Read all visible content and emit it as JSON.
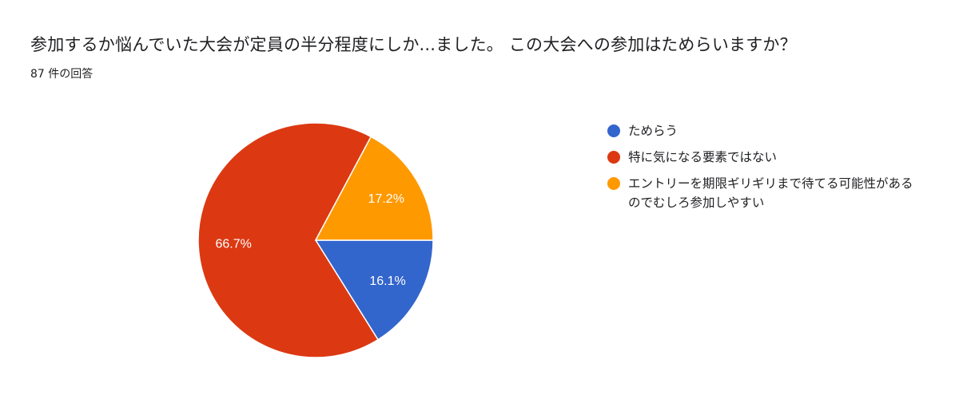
{
  "title": "参加するか悩んでいた大会が定員の半分程度にしか...ました。 この大会への参加はためらいますか？",
  "response_count": "87 件の回答",
  "chart_data": {
    "type": "pie",
    "categories": [
      "ためらう",
      "特に気になる要素ではない",
      "エントリーを期限ギリギリまで待てる可能性があるのでむしろ参加しやすい"
    ],
    "values": [
      16.1,
      66.7,
      17.2
    ],
    "labels": [
      "16.1%",
      "66.7%",
      "17.2%"
    ],
    "colors": [
      "#3366cc",
      "#dc3912",
      "#ff9900"
    ],
    "legend_position": "right"
  }
}
